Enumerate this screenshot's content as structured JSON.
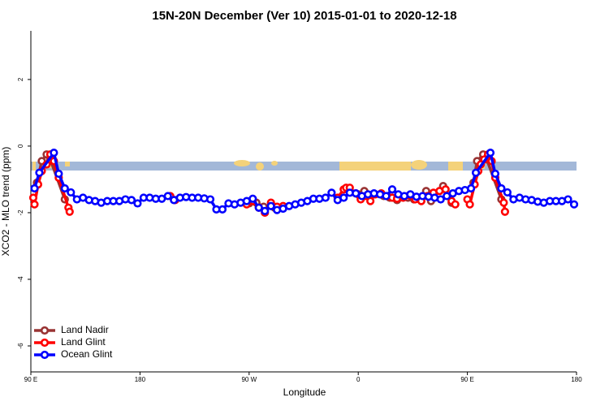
{
  "chart_data": {
    "type": "line",
    "title": "15N-20N December (Ver 10)   2015-01-01 to 2020-12-18",
    "x_label": "Longitude",
    "y_label": "XCO2 - MLO trend (ppm)",
    "xlim": [
      90,
      540
    ],
    "xticks": [
      {
        "value": 90,
        "label": "90 E"
      },
      180,
      {
        "value": 270,
        "label": "90 W"
      },
      {
        "value": 360,
        "label": "0"
      },
      {
        "value": 450,
        "label": "90 E"
      },
      {
        "value": 540,
        "label": "180"
      }
    ],
    "ylim": [
      -6.78,
      3.46
    ],
    "yticks": [
      2,
      0,
      -2,
      -4,
      -6
    ],
    "legend": "bottom-left",
    "series": [
      {
        "name": "Land Nadir",
        "color": "#993333",
        "x": [
          95,
          99,
          103,
          106,
          118,
          200,
          270,
          276,
          282,
          291,
          320,
          352,
          360,
          365,
          372,
          381,
          386,
          392,
          401,
          406,
          416,
          420,
          430,
          437,
          445,
          455,
          458,
          463,
          466,
          478
        ],
        "values": [
          -1.1,
          -0.45,
          -0.25,
          -0.4,
          -1.6,
          null,
          -1.72,
          -1.7,
          -1.82,
          -1.85,
          null,
          -1.3,
          -1.45,
          -1.35,
          -1.45,
          -1.5,
          -1.55,
          -1.62,
          -1.55,
          -1.6,
          -1.35,
          -1.65,
          -1.2,
          -1.7,
          null,
          -1.1,
          -0.45,
          -0.25,
          -0.4,
          -1.6
        ]
      },
      {
        "name": "Land Glint",
        "color": "#ff0000",
        "x": [
          92,
          93,
          96,
          99,
          103,
          106,
          109,
          113,
          121,
          122,
          160,
          205,
          209,
          240,
          268,
          273,
          278,
          283,
          288,
          293,
          298,
          320,
          343,
          348,
          350,
          353,
          358,
          362,
          366,
          370,
          374,
          379,
          384,
          388,
          392,
          397,
          402,
          407,
          412,
          417,
          422,
          427,
          432,
          437,
          440,
          445,
          450,
          452,
          456,
          459,
          461,
          464,
          467,
          470,
          473,
          480,
          481
        ],
        "values": [
          -1.55,
          -1.75,
          -1.15,
          -0.75,
          -0.55,
          -0.25,
          -0.45,
          -0.95,
          -1.85,
          -1.97,
          null,
          -1.5,
          -1.62,
          null,
          -1.75,
          -1.65,
          -1.85,
          -2.0,
          -1.7,
          -1.82,
          -1.8,
          null,
          -1.55,
          -1.3,
          -1.25,
          -1.25,
          -1.42,
          -1.6,
          -1.5,
          -1.65,
          -1.45,
          -1.42,
          -1.5,
          -1.55,
          -1.58,
          -1.55,
          -1.48,
          -1.6,
          -1.65,
          -1.5,
          -1.4,
          -1.35,
          -1.3,
          -1.65,
          -1.75,
          null,
          -1.6,
          -1.75,
          -1.15,
          -0.75,
          -0.55,
          -0.4,
          -0.25,
          -0.45,
          -0.95,
          -1.7,
          -1.97
        ]
      },
      {
        "name": "Ocean Glint",
        "color": "#0000ff",
        "x": [
          93,
          97,
          109,
          113,
          118,
          123,
          128,
          133,
          138,
          143,
          148,
          153,
          158,
          163,
          168,
          173,
          178,
          183,
          188,
          193,
          198,
          203,
          208,
          213,
          218,
          223,
          228,
          233,
          238,
          243,
          248,
          253,
          258,
          263,
          268,
          273,
          278,
          283,
          288,
          293,
          298,
          303,
          308,
          313,
          318,
          323,
          328,
          333,
          338,
          343,
          348,
          353,
          358,
          363,
          368,
          373,
          378,
          383,
          388,
          393,
          398,
          403,
          408,
          413,
          418,
          423,
          428,
          433,
          438,
          443,
          448,
          453,
          457,
          469,
          473,
          478,
          483,
          488,
          493,
          498,
          503,
          508,
          513,
          518,
          523,
          528,
          533,
          538
        ],
        "values": [
          -1.27,
          -0.8,
          -0.2,
          -0.83,
          -1.27,
          -1.39,
          -1.6,
          -1.55,
          -1.62,
          -1.65,
          -1.7,
          -1.65,
          -1.65,
          -1.65,
          -1.6,
          -1.62,
          -1.72,
          -1.55,
          -1.55,
          -1.58,
          -1.58,
          -1.5,
          -1.62,
          -1.55,
          -1.53,
          -1.55,
          -1.55,
          -1.57,
          -1.6,
          -1.9,
          -1.9,
          -1.72,
          -1.75,
          -1.7,
          -1.65,
          -1.58,
          -1.85,
          -1.95,
          -1.8,
          -1.92,
          -1.88,
          -1.8,
          -1.75,
          -1.7,
          -1.65,
          -1.58,
          -1.58,
          -1.55,
          -1.4,
          -1.62,
          -1.55,
          -1.4,
          -1.42,
          -1.5,
          -1.45,
          -1.42,
          -1.45,
          -1.5,
          -1.3,
          -1.45,
          -1.5,
          -1.45,
          -1.52,
          -1.5,
          -1.52,
          -1.55,
          -1.6,
          -1.5,
          -1.42,
          -1.35,
          -1.32,
          -1.27,
          -0.8,
          -0.2,
          -0.83,
          -1.27,
          -1.39,
          -1.6,
          -1.55,
          -1.6,
          -1.62,
          -1.67,
          -1.7,
          -1.65,
          -1.65,
          -1.65,
          -1.6,
          -1.75
        ]
      }
    ]
  }
}
